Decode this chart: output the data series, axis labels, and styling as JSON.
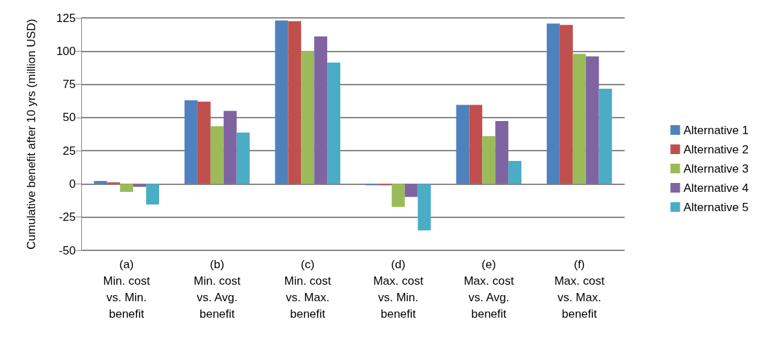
{
  "chart_data": {
    "type": "bar",
    "ylabel": "Cumulative benefit after 10 yrs (million USD)",
    "categories": [
      "(a)\nMin. cost\nvs. Min.\nbenefit",
      "(b)\nMin. cost\nvs. Avg.\nbenefit",
      "(c)\nMin. cost\nvs. Max.\nbenefit",
      "(d)\nMax. cost\nvs. Min.\nbenefit",
      "(e)\nMax. cost\nvs. Avg.\nbenefit",
      "(f)\nMax. cost\nvs. Max.\nbenefit"
    ],
    "series": [
      {
        "name": "Alternative 1",
        "color": "#4f81bd",
        "values": [
          2.2,
          63,
          123,
          -1,
          59.5,
          120.7
        ]
      },
      {
        "name": "Alternative 2",
        "color": "#c0504d",
        "values": [
          1.2,
          62,
          122.5,
          -1,
          59.5,
          119.7
        ]
      },
      {
        "name": "Alternative 3",
        "color": "#9bbb59",
        "values": [
          -6,
          43.5,
          100,
          -17.3,
          36,
          98
        ]
      },
      {
        "name": "Alternative 4",
        "color": "#8064a2",
        "values": [
          -2.2,
          55,
          111,
          -9.8,
          47.3,
          96
        ]
      },
      {
        "name": "Alternative 5",
        "color": "#4bacc6",
        "values": [
          -15.5,
          38.7,
          91.3,
          -35,
          17.3,
          71.7
        ]
      }
    ],
    "ylim": [
      -50,
      125
    ],
    "yticks": [
      -50,
      -25,
      0,
      25,
      50,
      75,
      100,
      125
    ],
    "grid": "y",
    "legend": "right"
  }
}
